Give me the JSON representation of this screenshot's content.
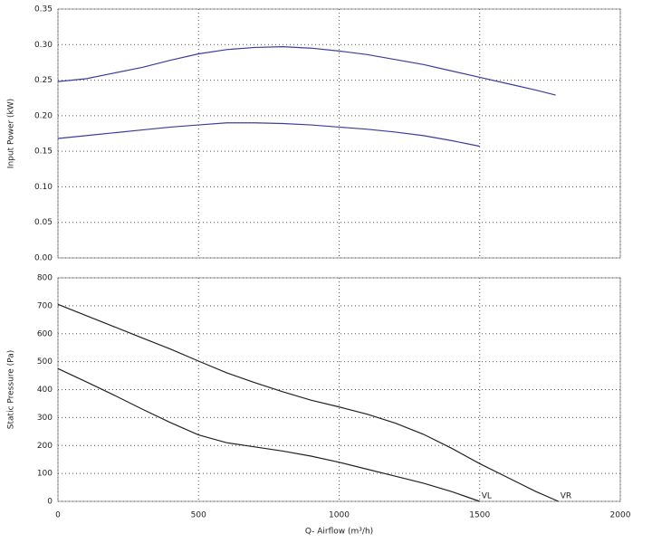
{
  "chart_data": [
    {
      "type": "line",
      "ylabel": "Input Power (kW)",
      "xlim": [
        0,
        2000
      ],
      "ylim": [
        0,
        0.35
      ],
      "yticks": [
        {
          "value": 0,
          "label": "0.00"
        },
        {
          "value": 0.05,
          "label": "0.05"
        },
        {
          "value": 0.1,
          "label": "0.10"
        },
        {
          "value": 0.15,
          "label": "0.15"
        },
        {
          "value": 0.2,
          "label": "0.20"
        },
        {
          "value": 0.25,
          "label": "0.25"
        },
        {
          "value": 0.3,
          "label": "0.30"
        },
        {
          "value": 0.35,
          "label": "0.35"
        }
      ],
      "grid": true,
      "series": [
        {
          "color": "#3c3ca0",
          "x": [
            0,
            100,
            200,
            300,
            400,
            500,
            600,
            700,
            800,
            900,
            1000,
            1100,
            1200,
            1300,
            1400,
            1500,
            1600,
            1700,
            1770
          ],
          "values": [
            0.248,
            0.252,
            0.26,
            0.268,
            0.278,
            0.287,
            0.293,
            0.296,
            0.297,
            0.295,
            0.291,
            0.286,
            0.279,
            0.272,
            0.263,
            0.254,
            0.245,
            0.236,
            0.229
          ]
        },
        {
          "color": "#3c3ca0",
          "x": [
            0,
            100,
            200,
            300,
            400,
            500,
            600,
            700,
            800,
            900,
            1000,
            1100,
            1200,
            1300,
            1400,
            1500
          ],
          "values": [
            0.168,
            0.172,
            0.176,
            0.18,
            0.184,
            0.187,
            0.19,
            0.19,
            0.189,
            0.187,
            0.184,
            0.181,
            0.177,
            0.172,
            0.165,
            0.157
          ]
        }
      ]
    },
    {
      "type": "line",
      "ylabel": "Static Pressure (Pa)",
      "xlabel": "Q- Airflow (m³/h)",
      "xlim": [
        0,
        2000
      ],
      "ylim": [
        0,
        800
      ],
      "xticks": [
        0,
        500,
        1000,
        1500,
        2000
      ],
      "yticks": [
        0,
        100,
        200,
        300,
        400,
        500,
        600,
        700,
        800
      ],
      "grid": true,
      "series": [
        {
          "name": "VL",
          "color": "#222222",
          "x": [
            0,
            100,
            200,
            300,
            400,
            500,
            600,
            700,
            800,
            900,
            1000,
            1100,
            1200,
            1300,
            1400,
            1500
          ],
          "values": [
            475,
            428,
            380,
            330,
            282,
            238,
            210,
            195,
            180,
            162,
            140,
            115,
            90,
            65,
            35,
            0
          ]
        },
        {
          "name": "VR",
          "color": "#222222",
          "x": [
            0,
            100,
            200,
            300,
            400,
            500,
            600,
            700,
            800,
            900,
            1000,
            1100,
            1200,
            1300,
            1400,
            1500,
            1600,
            1700,
            1780
          ],
          "values": [
            705,
            665,
            625,
            585,
            545,
            502,
            460,
            425,
            392,
            362,
            338,
            312,
            280,
            240,
            190,
            135,
            85,
            35,
            0
          ]
        }
      ]
    }
  ]
}
